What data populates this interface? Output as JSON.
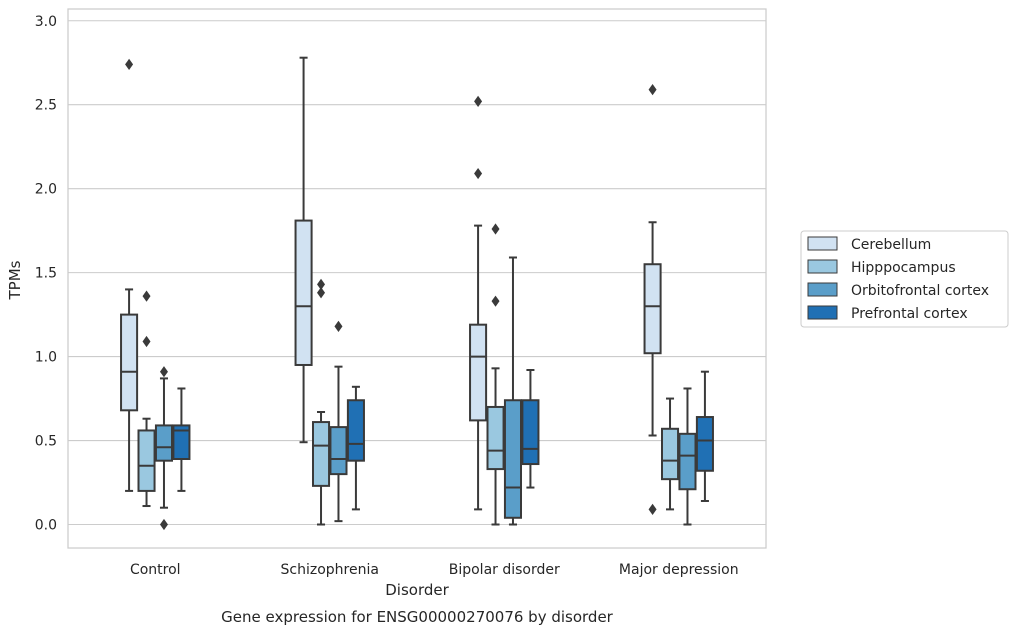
{
  "chart_data": {
    "type": "box",
    "title": "",
    "caption": "Gene expression for ENSG00000270076 by disorder",
    "xlabel": "Disorder",
    "ylabel": "TPMs",
    "ylim": [
      -0.14,
      3.07
    ],
    "yticks": [
      "0.0",
      "0.5",
      "1.0",
      "1.5",
      "2.0",
      "2.5",
      "3.0"
    ],
    "grid": true,
    "legend_position": "right",
    "categories": [
      "Control",
      "Schizophrenia",
      "Bipolar disorder",
      "Major depression"
    ],
    "series": [
      {
        "name": "Cerebellum",
        "color": "#d1e2f2",
        "boxes": [
          {
            "whisker_low": 0.2,
            "q1": 0.68,
            "median": 0.91,
            "q3": 1.25,
            "whisker_high": 1.4,
            "outliers": [
              2.74
            ]
          },
          {
            "whisker_low": 0.49,
            "q1": 0.95,
            "median": 1.3,
            "q3": 1.81,
            "whisker_high": 2.78,
            "outliers": []
          },
          {
            "whisker_low": 0.09,
            "q1": 0.62,
            "median": 1.0,
            "q3": 1.19,
            "whisker_high": 1.78,
            "outliers": [
              2.09,
              2.52
            ]
          },
          {
            "whisker_low": 0.53,
            "q1": 1.02,
            "median": 1.3,
            "q3": 1.55,
            "whisker_high": 1.8,
            "outliers": [
              0.09,
              2.59
            ]
          }
        ]
      },
      {
        "name": "Hipppocampus",
        "color": "#9ac8e0",
        "boxes": [
          {
            "whisker_low": 0.11,
            "q1": 0.2,
            "median": 0.35,
            "q3": 0.56,
            "whisker_high": 0.63,
            "outliers": [
              1.09,
              1.36
            ]
          },
          {
            "whisker_low": 0.0,
            "q1": 0.23,
            "median": 0.47,
            "q3": 0.61,
            "whisker_high": 0.67,
            "outliers": [
              1.38,
              1.43
            ]
          },
          {
            "whisker_low": 0.0,
            "q1": 0.33,
            "median": 0.44,
            "q3": 0.7,
            "whisker_high": 0.93,
            "outliers": [
              1.33,
              1.76
            ]
          },
          {
            "whisker_low": 0.09,
            "q1": 0.27,
            "median": 0.38,
            "q3": 0.57,
            "whisker_high": 0.75,
            "outliers": []
          }
        ]
      },
      {
        "name": "Orbitofrontal cortex",
        "color": "#5a9ec9",
        "boxes": [
          {
            "whisker_low": 0.1,
            "q1": 0.38,
            "median": 0.46,
            "q3": 0.59,
            "whisker_high": 0.87,
            "outliers": [
              0.0,
              0.91
            ]
          },
          {
            "whisker_low": 0.02,
            "q1": 0.3,
            "median": 0.39,
            "q3": 0.58,
            "whisker_high": 0.94,
            "outliers": [
              1.18
            ]
          },
          {
            "whisker_low": 0.0,
            "q1": 0.04,
            "median": 0.22,
            "q3": 0.74,
            "whisker_high": 1.59,
            "outliers": []
          },
          {
            "whisker_low": 0.0,
            "q1": 0.21,
            "median": 0.41,
            "q3": 0.54,
            "whisker_high": 0.81,
            "outliers": []
          }
        ]
      },
      {
        "name": "Prefrontal cortex",
        "color": "#2070b4",
        "boxes": [
          {
            "whisker_low": 0.2,
            "q1": 0.39,
            "median": 0.56,
            "q3": 0.59,
            "whisker_high": 0.81,
            "outliers": []
          },
          {
            "whisker_low": 0.09,
            "q1": 0.38,
            "median": 0.48,
            "q3": 0.74,
            "whisker_high": 0.82,
            "outliers": []
          },
          {
            "whisker_low": 0.22,
            "q1": 0.36,
            "median": 0.45,
            "q3": 0.74,
            "whisker_high": 0.92,
            "outliers": []
          },
          {
            "whisker_low": 0.14,
            "q1": 0.32,
            "median": 0.5,
            "q3": 0.64,
            "whisker_high": 0.91,
            "outliers": []
          }
        ]
      }
    ]
  }
}
